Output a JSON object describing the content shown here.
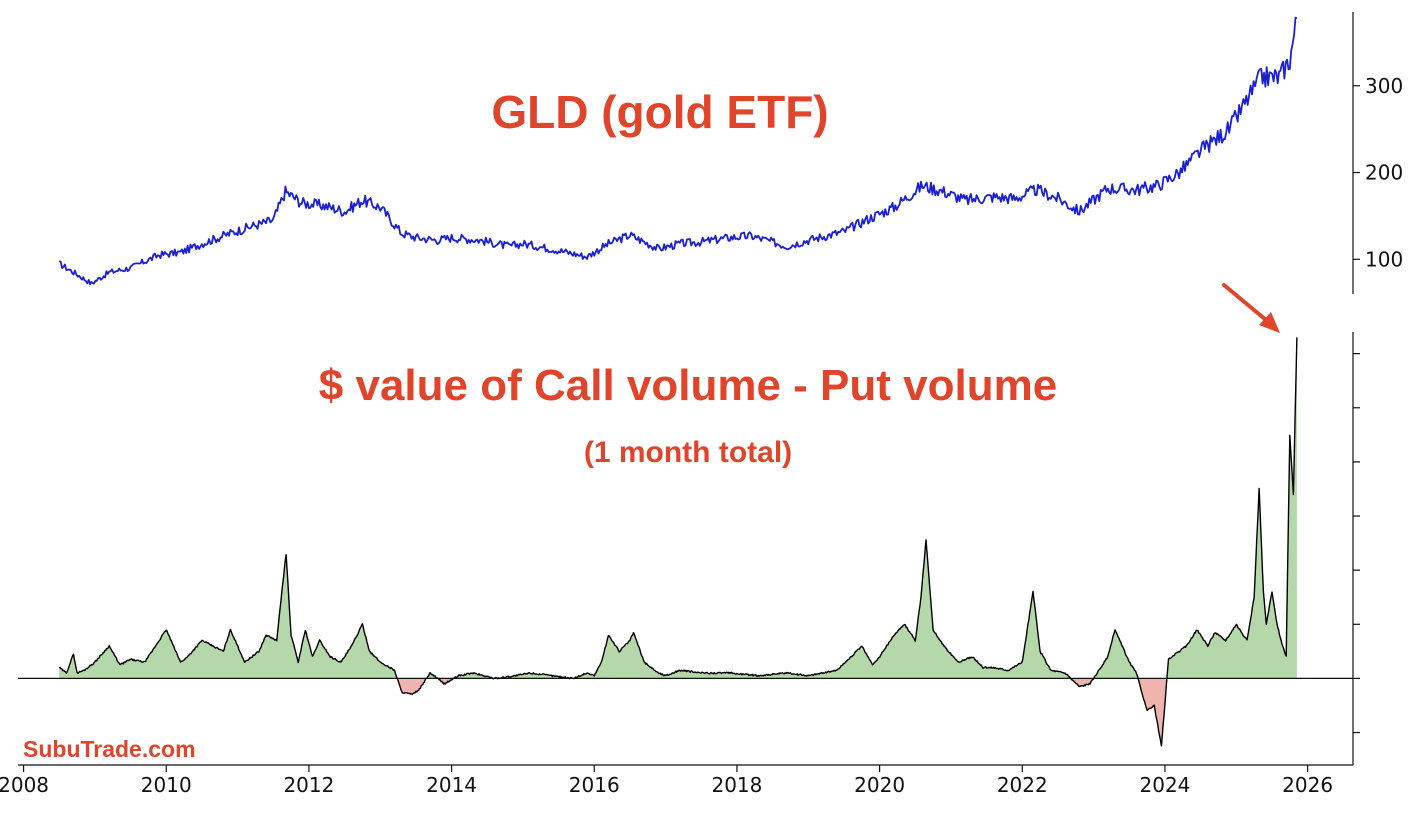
{
  "chart_data": [
    {
      "type": "line",
      "title": "GLD (gold ETF)",
      "xlabel": "",
      "ylabel": "",
      "ylim": [
        60,
        385
      ],
      "yticks": [
        100,
        200,
        300
      ],
      "yaxis_side": "right",
      "line_color": "#1a1fd4",
      "title_color": "#e0442a",
      "series": [
        {
          "x": [
            2008.5,
            2008.8,
            2008.95,
            2009.2,
            2009.5,
            2009.9,
            2010.2,
            2010.5,
            2010.9,
            2011.2,
            2011.5,
            2011.67,
            2011.9,
            2012.2,
            2012.5,
            2012.75,
            2013.0,
            2013.3,
            2013.5,
            2013.8,
            2014.0,
            2014.4,
            2014.8,
            2015.0,
            2015.4,
            2015.9,
            2016.2,
            2016.5,
            2016.9,
            2017.2,
            2017.5,
            2017.9,
            2018.2,
            2018.7,
            2019.0,
            2019.5,
            2019.8,
            2020.2,
            2020.6,
            2020.9,
            2021.2,
            2021.6,
            2021.9,
            2022.2,
            2022.5,
            2022.8,
            2023.2,
            2023.6,
            2023.9,
            2024.2,
            2024.5,
            2024.9,
            2025.2,
            2025.35,
            2025.6,
            2025.75,
            2025.85
          ],
          "values": [
            95,
            80,
            72,
            85,
            90,
            105,
            108,
            118,
            130,
            138,
            145,
            178,
            165,
            162,
            155,
            168,
            160,
            130,
            125,
            122,
            125,
            122,
            115,
            118,
            112,
            103,
            118,
            128,
            112,
            118,
            120,
            125,
            127,
            115,
            122,
            132,
            145,
            160,
            185,
            178,
            168,
            172,
            170,
            180,
            170,
            155,
            182,
            180,
            185,
            200,
            225,
            250,
            290,
            310,
            310,
            330,
            378
          ]
        }
      ]
    },
    {
      "type": "area",
      "title": "$ value of Call volume - Put volume",
      "subtitle": "(1 month total)",
      "xlabel": "",
      "ylabel": "",
      "ylim": [
        -1.6,
        6.4
      ],
      "xlim": [
        2007.95,
        2026.65
      ],
      "xticks": [
        2008,
        2010,
        2012,
        2014,
        2016,
        2018,
        2020,
        2022,
        2024,
        2026
      ],
      "yticks": [
        -1,
        0,
        1,
        2,
        3,
        4,
        5,
        6
      ],
      "positive_fill": "#b5d8aa",
      "negative_fill": "#eeb4ad",
      "line_color": "#000000",
      "series": [
        {
          "x": [
            2008.5,
            2008.6,
            2008.7,
            2008.75,
            2008.85,
            2009.0,
            2009.2,
            2009.35,
            2009.5,
            2009.7,
            2009.8,
            2010.0,
            2010.2,
            2010.3,
            2010.5,
            2010.8,
            2010.9,
            2011.1,
            2011.3,
            2011.4,
            2011.55,
            2011.62,
            2011.68,
            2011.75,
            2011.85,
            2011.95,
            2012.05,
            2012.15,
            2012.3,
            2012.45,
            2012.6,
            2012.75,
            2012.85,
            2013.0,
            2013.2,
            2013.3,
            2013.45,
            2013.55,
            2013.7,
            2013.9,
            2014.1,
            2014.3,
            2014.6,
            2014.9,
            2015.1,
            2015.4,
            2015.7,
            2015.9,
            2016.0,
            2016.1,
            2016.2,
            2016.35,
            2016.5,
            2016.55,
            2016.7,
            2016.9,
            2017.0,
            2017.2,
            2017.5,
            2017.9,
            2018.3,
            2018.7,
            2019.0,
            2019.2,
            2019.4,
            2019.6,
            2019.75,
            2019.9,
            2020.0,
            2020.2,
            2020.35,
            2020.5,
            2020.58,
            2020.65,
            2020.75,
            2020.9,
            2021.1,
            2021.3,
            2021.45,
            2021.6,
            2021.8,
            2022.0,
            2022.15,
            2022.25,
            2022.4,
            2022.6,
            2022.8,
            2022.95,
            2023.1,
            2023.2,
            2023.3,
            2023.5,
            2023.6,
            2023.75,
            2023.85,
            2023.95,
            2024.05,
            2024.2,
            2024.3,
            2024.45,
            2024.6,
            2024.7,
            2024.85,
            2025.0,
            2025.15,
            2025.25,
            2025.32,
            2025.38,
            2025.42,
            2025.5,
            2025.57,
            2025.65,
            2025.7,
            2025.75,
            2025.8,
            2025.85
          ],
          "values": [
            0.2,
            0.1,
            0.45,
            0.1,
            0.15,
            0.3,
            0.6,
            0.25,
            0.35,
            0.3,
            0.5,
            0.9,
            0.3,
            0.4,
            0.7,
            0.5,
            0.9,
            0.3,
            0.5,
            0.8,
            0.7,
            1.6,
            2.3,
            0.8,
            0.3,
            0.9,
            0.4,
            0.7,
            0.4,
            0.3,
            0.6,
            1.0,
            0.5,
            0.3,
            0.15,
            -0.25,
            -0.3,
            -0.2,
            0.1,
            -0.1,
            0.05,
            0.1,
            0.0,
            0.05,
            0.1,
            0.05,
            0.0,
            0.1,
            0.05,
            0.3,
            0.8,
            0.5,
            0.7,
            0.85,
            0.3,
            0.1,
            0.05,
            0.15,
            0.1,
            0.1,
            0.05,
            0.1,
            0.05,
            0.1,
            0.15,
            0.4,
            0.6,
            0.25,
            0.4,
            0.8,
            1.0,
            0.7,
            1.5,
            2.55,
            0.9,
            0.6,
            0.3,
            0.4,
            0.2,
            0.2,
            0.15,
            0.3,
            1.6,
            0.5,
            0.15,
            0.1,
            -0.15,
            -0.1,
            0.2,
            0.4,
            0.9,
            0.3,
            0.1,
            -0.6,
            -0.5,
            -1.25,
            0.35,
            0.5,
            0.6,
            0.9,
            0.6,
            0.85,
            0.7,
            1.0,
            0.7,
            1.5,
            3.5,
            1.6,
            1.0,
            1.6,
            1.0,
            0.6,
            0.4,
            4.5,
            3.4,
            6.3
          ]
        }
      ]
    }
  ],
  "annotation": {
    "watermark": "SubuTrade.com",
    "arrow_color": "#e0442a",
    "arrow_target": "latest spike"
  }
}
